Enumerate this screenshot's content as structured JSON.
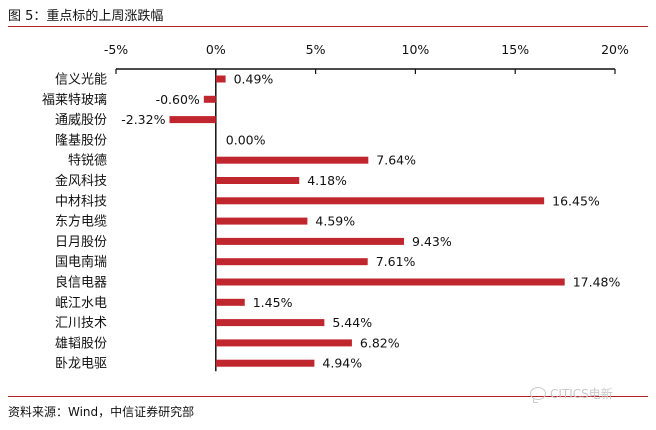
{
  "figure": {
    "title": "图 5：重点标的上周涨跌幅",
    "source": "资料来源：Wind，中信证券研究部",
    "watermark": "CITICS电新",
    "watermark_icon": "wechat-icon"
  },
  "colors": {
    "bar": "#c0262e",
    "rule": "#b3202a",
    "axis": "#111111"
  },
  "chart_data": {
    "type": "bar",
    "orientation": "horizontal",
    "categories": [
      "信义光能",
      "福莱特玻璃",
      "通威股份",
      "隆基股份",
      "特锐德",
      "金风科技",
      "中材科技",
      "东方电缆",
      "日月股份",
      "国电南瑞",
      "良信电器",
      "岷江水电",
      "汇川技术",
      "雄韬股份",
      "卧龙电驱"
    ],
    "values": [
      0.49,
      -0.6,
      -2.32,
      0.0,
      7.64,
      4.18,
      16.45,
      4.59,
      9.43,
      7.61,
      17.48,
      1.45,
      5.44,
      6.82,
      4.94
    ],
    "value_labels": [
      "0.49%",
      "-0.60%",
      "-2.32%",
      "0.00%",
      "7.64%",
      "4.18%",
      "16.45%",
      "4.59%",
      "9.43%",
      "7.61%",
      "17.48%",
      "1.45%",
      "5.44%",
      "6.82%",
      "4.94%"
    ],
    "xlim": [
      -5,
      20
    ],
    "x_ticks": [
      -5,
      0,
      5,
      10,
      15,
      20
    ],
    "x_tick_labels": [
      "-5%",
      "0%",
      "5%",
      "10%",
      "15%",
      "20%"
    ],
    "x_axis_position": "top",
    "grid": false,
    "legend": false
  }
}
